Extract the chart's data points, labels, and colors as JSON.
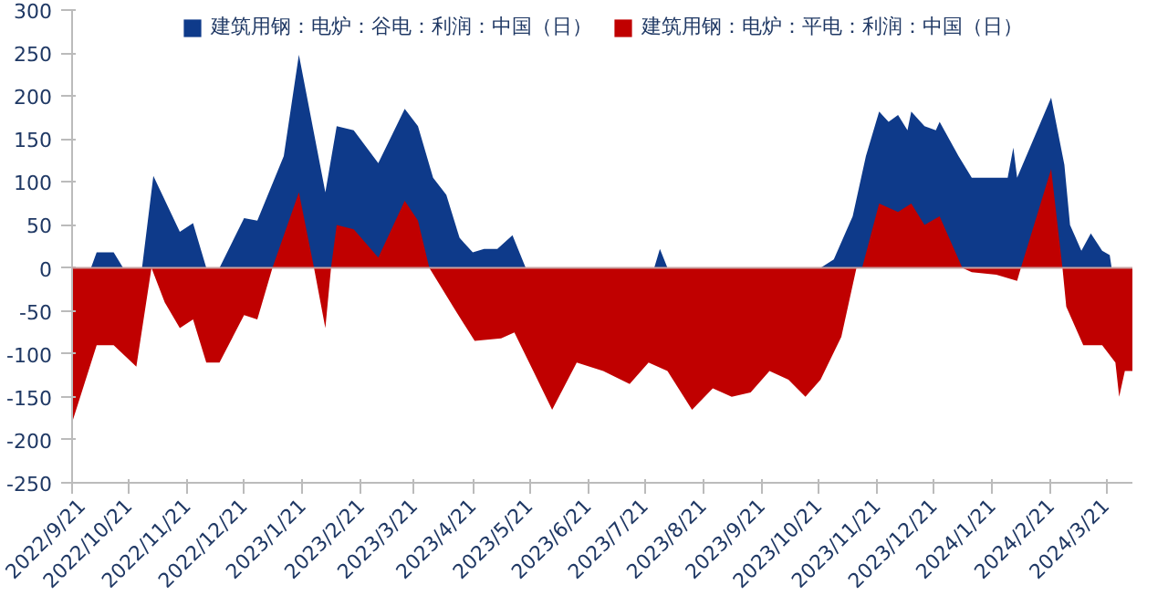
{
  "chart_data": {
    "type": "area",
    "series": [
      {
        "name": "建筑用钢：电炉：谷电：利润：中国（日）",
        "color": "#0e3a8a",
        "x": [
          "2022-09-21",
          "2022-10-01",
          "2022-10-04",
          "2022-10-13",
          "2022-10-18",
          "2022-10-28",
          "2022-11-03",
          "2022-11-17",
          "2022-11-24",
          "2022-12-01",
          "2022-12-08",
          "2022-12-21",
          "2022-12-28",
          "2023-01-11",
          "2023-01-19",
          "2023-02-02",
          "2023-02-08",
          "2023-02-17",
          "2023-03-02",
          "2023-03-16",
          "2023-03-23",
          "2023-03-31",
          "2023-04-07",
          "2023-04-14",
          "2023-04-21",
          "2023-04-27",
          "2023-05-04",
          "2023-05-12",
          "2023-05-19",
          "2023-07-26",
          "2023-07-29",
          "2023-08-02",
          "2023-10-22",
          "2023-10-29",
          "2023-11-08",
          "2023-11-15",
          "2023-11-22",
          "2023-11-27",
          "2023-12-02",
          "2023-12-07",
          "2023-12-09",
          "2023-12-16",
          "2023-12-22",
          "2023-12-24",
          "2024-01-03",
          "2024-01-10",
          "2024-01-18",
          "2024-01-29",
          "2024-02-01",
          "2024-02-03",
          "2024-02-21",
          "2024-02-28",
          "2024-03-02",
          "2024-03-08",
          "2024-03-13",
          "2024-03-19",
          "2024-03-23",
          "2024-03-24",
          "2024-04-04"
        ],
        "values": [
          0,
          0,
          18,
          18,
          0,
          0,
          107,
          42,
          52,
          0,
          0,
          58,
          55,
          130,
          248,
          88,
          165,
          160,
          122,
          185,
          165,
          105,
          85,
          35,
          18,
          22,
          22,
          38,
          0,
          0,
          22,
          0,
          0,
          10,
          60,
          130,
          182,
          170,
          178,
          160,
          182,
          165,
          160,
          170,
          130,
          105,
          105,
          105,
          140,
          105,
          198,
          120,
          50,
          20,
          40,
          20,
          15,
          0,
          0
        ]
      },
      {
        "name": "建筑用钢：电炉：平电：利润：中国（日）",
        "color": "#c00000",
        "x": [
          "2022-09-21",
          "2022-10-04",
          "2022-10-13",
          "2022-10-25",
          "2022-11-02",
          "2022-11-09",
          "2022-11-17",
          "2022-11-24",
          "2022-12-01",
          "2022-12-08",
          "2022-12-21",
          "2022-12-28",
          "2023-01-05",
          "2023-01-19",
          "2023-01-27",
          "2023-02-02",
          "2023-02-05",
          "2023-02-08",
          "2023-02-17",
          "2023-03-02",
          "2023-03-16",
          "2023-03-23",
          "2023-03-29",
          "2023-04-12",
          "2023-04-22",
          "2023-05-06",
          "2023-05-13",
          "2023-05-23",
          "2023-06-02",
          "2023-06-15",
          "2023-06-29",
          "2023-07-13",
          "2023-07-23",
          "2023-08-02",
          "2023-08-15",
          "2023-08-26",
          "2023-09-05",
          "2023-09-15",
          "2023-09-25",
          "2023-10-05",
          "2023-10-14",
          "2023-10-22",
          "2023-11-02",
          "2023-11-10",
          "2023-11-13",
          "2023-11-22",
          "2023-12-02",
          "2023-12-09",
          "2023-12-16",
          "2023-12-24",
          "2024-01-05",
          "2024-01-10",
          "2024-01-23",
          "2024-02-03",
          "2024-02-05",
          "2024-02-21",
          "2024-02-27",
          "2024-02-29",
          "2024-03-09",
          "2024-03-19",
          "2024-03-26",
          "2024-03-28",
          "2024-03-31",
          "2024-04-04"
        ],
        "values": [
          -180,
          -90,
          -90,
          -115,
          0,
          -40,
          -70,
          -60,
          -110,
          -110,
          -55,
          -60,
          0,
          88,
          0,
          -70,
          0,
          50,
          45,
          12,
          78,
          55,
          0,
          -50,
          -85,
          -82,
          -75,
          -120,
          -165,
          -110,
          -120,
          -135,
          -110,
          -120,
          -165,
          -140,
          -150,
          -145,
          -120,
          -130,
          -150,
          -130,
          -80,
          0,
          0,
          75,
          65,
          75,
          50,
          60,
          0,
          -5,
          -8,
          -15,
          0,
          115,
          0,
          -45,
          -90,
          -90,
          -110,
          -150,
          -120,
          -120
        ]
      }
    ],
    "xlim": [
      "2022-09-21",
      "2024-04-04"
    ],
    "xticks": [
      {
        "value": "2022-09-21",
        "label": "2022/9/21"
      },
      {
        "value": "2022-10-21",
        "label": "2022/10/21"
      },
      {
        "value": "2022-11-21",
        "label": "2022/11/21"
      },
      {
        "value": "2022-12-21",
        "label": "2022/12/21"
      },
      {
        "value": "2023-01-21",
        "label": "2023/1/21"
      },
      {
        "value": "2023-02-21",
        "label": "2023/2/21"
      },
      {
        "value": "2023-03-21",
        "label": "2023/3/21"
      },
      {
        "value": "2023-04-21",
        "label": "2023/4/21"
      },
      {
        "value": "2023-05-21",
        "label": "2023/5/21"
      },
      {
        "value": "2023-06-21",
        "label": "2023/6/21"
      },
      {
        "value": "2023-07-21",
        "label": "2023/7/21"
      },
      {
        "value": "2023-08-21",
        "label": "2023/8/21"
      },
      {
        "value": "2023-09-21",
        "label": "2023/9/21"
      },
      {
        "value": "2023-10-21",
        "label": "2023/10/21"
      },
      {
        "value": "2023-11-21",
        "label": "2023/11/21"
      },
      {
        "value": "2023-12-21",
        "label": "2023/12/21"
      },
      {
        "value": "2024-01-21",
        "label": "2024/1/21"
      },
      {
        "value": "2024-02-21",
        "label": "2024/2/21"
      },
      {
        "value": "2024-03-21",
        "label": "2024/3/21"
      }
    ],
    "ylim": [
      -250,
      300
    ],
    "yticks": [
      -250,
      -200,
      -150,
      -100,
      -50,
      0,
      50,
      100,
      150,
      200,
      250,
      300
    ],
    "grid": false,
    "ref_lines": [
      {
        "axis": "y",
        "value": 0,
        "color": "#c8a0a0"
      }
    ],
    "legend": "top"
  }
}
